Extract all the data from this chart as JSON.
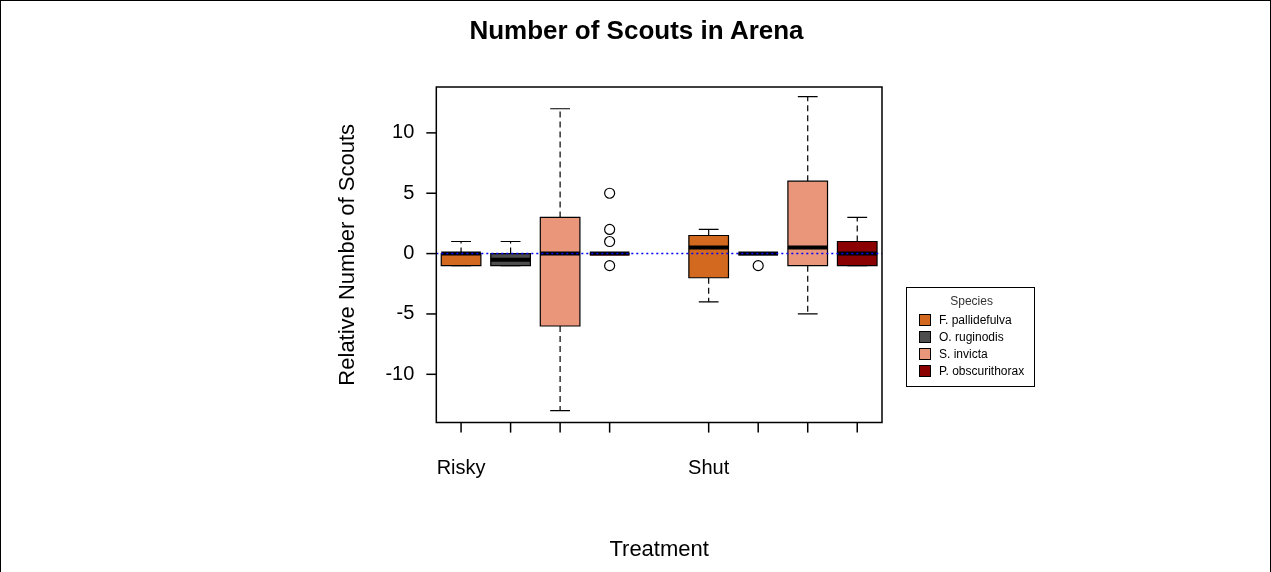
{
  "chart_data": {
    "type": "box",
    "title": "Number of Scouts in Arena",
    "xlabel": "Treatment",
    "ylabel": "Relative Number of Scouts",
    "legend_title": "Species",
    "legend": "right",
    "grid": false,
    "marker": "circle",
    "categories": [
      "Risky",
      null,
      null,
      null,
      null,
      "Shut",
      null,
      null,
      null
    ],
    "ylim": [
      -14,
      13.8
    ],
    "yticks": [
      -10,
      -5,
      0,
      5,
      10
    ],
    "ref_lines": [
      {
        "axis": "y",
        "value": 0,
        "color": "#0000ff",
        "line_style": "dotted"
      }
    ],
    "series": [
      {
        "name": "F. pallidefulva",
        "color": "#d2691e",
        "boxes": [
          {
            "low": -1,
            "q1": -1,
            "median": 0,
            "q3": 0,
            "high": 1
          },
          null,
          null,
          null,
          null,
          {
            "low": -4,
            "q1": -2,
            "median": 0.5,
            "q3": 1.5,
            "high": 2
          },
          null,
          null,
          null
        ]
      },
      {
        "name": "O. ruginodis",
        "color": "#4d4d4d",
        "boxes": [
          null,
          {
            "low": -1,
            "q1": -1,
            "median": -0.5,
            "q3": 0,
            "high": 1
          },
          null,
          null,
          null,
          null,
          {
            "low": 0,
            "q1": 0,
            "median": 0,
            "q3": 0,
            "high": 0,
            "outliers": [
              -1
            ]
          },
          null,
          null
        ]
      },
      {
        "name": "S. invicta",
        "color": "#e9967a",
        "boxes": [
          null,
          null,
          {
            "low": -13,
            "q1": -6,
            "median": 0,
            "q3": 3,
            "high": 12
          },
          null,
          null,
          null,
          null,
          {
            "low": -5,
            "q1": -1,
            "median": 0.5,
            "q3": 6,
            "high": 13
          },
          null
        ]
      },
      {
        "name": "P. obscurithorax",
        "color": "#8b0000",
        "boxes": [
          null,
          null,
          null,
          {
            "low": 0,
            "q1": 0,
            "median": 0,
            "q3": 0,
            "high": 0,
            "outliers": [
              5,
              2,
              1,
              -1
            ]
          },
          null,
          null,
          null,
          null,
          {
            "low": -1,
            "q1": -1,
            "median": 0,
            "q3": 1,
            "high": 3
          }
        ]
      }
    ]
  }
}
